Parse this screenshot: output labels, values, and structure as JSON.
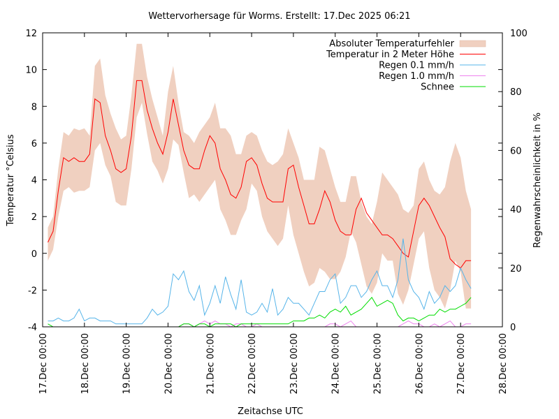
{
  "chart_data": {
    "type": "line",
    "title": "Wettervorhersage für Worms. Erstellt: 17.Dec 2025 06:21",
    "xlabel": "Zeitachse UTC",
    "ylabel": "Temperatur °Celsius",
    "y2label": "Regenwahrscheinlichkeit in %",
    "ylim": [
      -4,
      12
    ],
    "y2lim": [
      0,
      100
    ],
    "xlim_hours": [
      0,
      264
    ],
    "x_origin": "17.Dec 2025 00:00 UTC",
    "x_step_hours": 3,
    "x_start_hours": 3,
    "grid": false,
    "legend_position": "top-right",
    "yticks": [
      "-4",
      "-2",
      "0",
      "2",
      "4",
      "6",
      "8",
      "10",
      "12"
    ],
    "y2ticks": [
      "0",
      "20",
      "40",
      "60",
      "80",
      "100"
    ],
    "xticks": [
      "17.Dec 00:00",
      "18.Dec 00:00",
      "19.Dec 00:00",
      "20.Dec 00:00",
      "21.Dec 00:00",
      "22.Dec 00:00",
      "23.Dec 00:00",
      "24.Dec 00:00",
      "25.Dec 00:00",
      "26.Dec 00:00",
      "27.Dec 00:00",
      "28.Dec 00:00"
    ],
    "series": [
      {
        "name": "Absoluter Temperaturfehler",
        "kind": "band",
        "color": "#f0d0c0",
        "axis": "left",
        "lower": [
          -0.4,
          0.2,
          2.0,
          3.4,
          3.6,
          3.3,
          3.4,
          3.4,
          3.6,
          5.6,
          6.0,
          4.8,
          4.2,
          2.8,
          2.6,
          2.6,
          4.6,
          7.4,
          8.2,
          6.5,
          5.0,
          4.5,
          3.8,
          4.6,
          6.2,
          5.9,
          4.4,
          3.0,
          3.2,
          2.8,
          3.2,
          3.6,
          4.0,
          2.4,
          1.8,
          1.0,
          1.0,
          1.8,
          2.4,
          3.8,
          3.4,
          2.0,
          1.2,
          0.8,
          0.4,
          0.8,
          2.6,
          1.0,
          0.0,
          -1.0,
          -1.8,
          -1.6,
          -0.8,
          -1.0,
          -1.4,
          -1.4,
          -1.0,
          -0.2,
          1.2,
          0.6,
          -0.6,
          -1.8,
          -2.2,
          -1.6,
          0.0,
          -0.4,
          -0.4,
          -2.2,
          -2.8,
          -2.0,
          -0.6,
          0.8,
          1.2,
          -0.8,
          -2.0,
          -2.4,
          -3.0,
          -2.0,
          -0.4,
          -1.0,
          -3.0,
          -3.0
        ],
        "upper": [
          1.4,
          2.0,
          4.6,
          6.6,
          6.4,
          6.8,
          6.7,
          6.8,
          6.4,
          10.2,
          10.6,
          8.6,
          7.6,
          6.8,
          6.2,
          6.4,
          8.6,
          11.4,
          11.4,
          9.6,
          8.4,
          7.4,
          6.4,
          8.8,
          10.2,
          8.2,
          6.6,
          6.4,
          6.0,
          6.6,
          7.0,
          7.4,
          8.2,
          6.8,
          6.8,
          6.4,
          5.4,
          5.4,
          6.4,
          6.6,
          6.4,
          5.6,
          5.0,
          4.8,
          5.0,
          5.4,
          6.8,
          6.0,
          5.2,
          4.0,
          4.0,
          4.0,
          5.8,
          5.6,
          4.6,
          3.6,
          2.8,
          2.8,
          4.2,
          4.2,
          2.8,
          2.0,
          1.6,
          2.8,
          4.4,
          4.0,
          3.6,
          3.2,
          2.4,
          2.2,
          2.6,
          4.6,
          5.0,
          4.0,
          3.4,
          3.2,
          3.6,
          5.0,
          6.0,
          5.2,
          3.4,
          2.4
        ]
      },
      {
        "name": "Temperatur in 2 Meter Höhe",
        "kind": "line",
        "color": "#ff0000",
        "axis": "left",
        "values": [
          0.6,
          1.2,
          3.4,
          5.2,
          5.0,
          5.2,
          5.0,
          5.0,
          5.4,
          8.4,
          8.2,
          6.4,
          5.6,
          4.6,
          4.4,
          4.6,
          6.4,
          9.4,
          9.4,
          7.8,
          6.8,
          6.0,
          5.4,
          6.6,
          8.4,
          7.0,
          5.6,
          4.8,
          4.6,
          4.6,
          5.6,
          6.4,
          6.0,
          4.6,
          4.0,
          3.2,
          3.0,
          3.6,
          5.0,
          5.2,
          4.8,
          3.8,
          3.0,
          2.8,
          2.8,
          2.8,
          4.6,
          4.8,
          3.6,
          2.6,
          1.6,
          1.6,
          2.4,
          3.4,
          2.8,
          1.8,
          1.2,
          1.0,
          1.0,
          2.4,
          3.0,
          2.2,
          1.8,
          1.4,
          1.0,
          1.0,
          0.8,
          0.4,
          0.0,
          -0.2,
          1.2,
          2.6,
          3.0,
          2.6,
          2.0,
          1.4,
          0.9,
          -0.3,
          -0.6,
          -0.8,
          -0.4,
          -0.4
        ]
      },
      {
        "name": "Regen 0.1 mm/h",
        "kind": "line",
        "color": "#56b4e9",
        "axis": "right",
        "values": [
          2,
          2,
          3,
          2,
          2,
          3,
          6,
          2,
          3,
          3,
          2,
          2,
          2,
          1,
          1,
          1,
          1,
          1,
          1,
          3,
          6,
          4,
          5,
          7,
          18,
          16,
          19,
          12,
          9,
          14,
          4,
          8,
          14,
          8,
          17,
          11,
          6,
          16,
          5,
          4,
          5,
          8,
          5,
          13,
          4,
          6,
          10,
          8,
          8,
          6,
          4,
          8,
          12,
          12,
          16,
          18,
          8,
          10,
          14,
          14,
          10,
          12,
          16,
          19,
          14,
          14,
          10,
          16,
          30,
          16,
          12,
          10,
          6,
          12,
          8,
          10,
          14,
          12,
          14,
          20,
          16,
          13
        ]
      },
      {
        "name": "Regen 1.0 mm/h",
        "kind": "line",
        "color": "#ee82ee",
        "axis": "right",
        "values": [
          0,
          0,
          0,
          0,
          0,
          0,
          0,
          0,
          0,
          0,
          0,
          0,
          0,
          0,
          0,
          0,
          0,
          0,
          0,
          0,
          0,
          0,
          0,
          0,
          0,
          0,
          1,
          1,
          0,
          1,
          2,
          1,
          2,
          1,
          1,
          0,
          1,
          1,
          0,
          0,
          1,
          0,
          0,
          0,
          0,
          0,
          0,
          0,
          0,
          0,
          0,
          0,
          0,
          0,
          1,
          1,
          0,
          1,
          2,
          0,
          0,
          0,
          0,
          0,
          0,
          0,
          0,
          0,
          1,
          2,
          1,
          1,
          0,
          0,
          1,
          0,
          1,
          2,
          0,
          0,
          1,
          1
        ]
      },
      {
        "name": "Schnee",
        "kind": "line",
        "color": "#00dd00",
        "axis": "right",
        "values": [
          1,
          0,
          0,
          0,
          0,
          0,
          0,
          0,
          0,
          0,
          0,
          0,
          0,
          0,
          0,
          0,
          0,
          0,
          0,
          0,
          0,
          0,
          0,
          0,
          0,
          0,
          1,
          1,
          0,
          1,
          1,
          0,
          1,
          1,
          1,
          1,
          0,
          1,
          1,
          1,
          1,
          1,
          1,
          1,
          1,
          1,
          1,
          2,
          2,
          2,
          3,
          3,
          4,
          3,
          5,
          6,
          5,
          7,
          4,
          5,
          6,
          8,
          10,
          7,
          8,
          9,
          8,
          4,
          2,
          3,
          3,
          2,
          3,
          4,
          4,
          6,
          5,
          6,
          6,
          7,
          8,
          10
        ]
      }
    ]
  }
}
